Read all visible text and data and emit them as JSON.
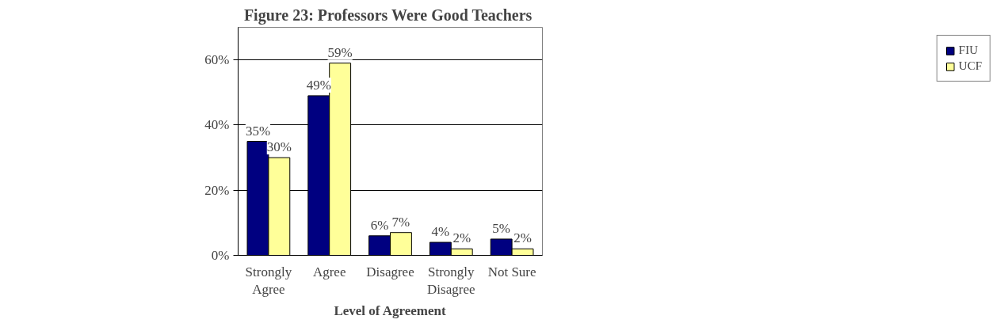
{
  "chart_data": {
    "type": "bar",
    "title": "Figure 23:  Professors Were Good Teachers",
    "xlabel": "Level of Agreement",
    "categories": [
      "Strongly Agree",
      "Agree",
      "Disagree",
      "Strongly Disagree",
      "Not Sure"
    ],
    "series": [
      {
        "name": "FIU",
        "color": "#000080",
        "values": [
          35,
          49,
          6,
          4,
          5
        ],
        "value_labels": [
          "35%",
          "49%",
          "6%",
          "4%",
          "5%"
        ]
      },
      {
        "name": "UCF",
        "color": "#ffff99",
        "values": [
          30,
          59,
          7,
          2,
          2
        ],
        "value_labels": [
          "30%",
          "59%",
          "7%",
          "2%",
          "2%"
        ]
      }
    ],
    "ylim": [
      0,
      70
    ],
    "yticks": [
      {
        "value": 0,
        "label": "0%"
      },
      {
        "value": 20,
        "label": "20%"
      },
      {
        "value": 40,
        "label": "40%"
      },
      {
        "value": 60,
        "label": "60%"
      }
    ],
    "grid": "y",
    "legend": "right"
  }
}
